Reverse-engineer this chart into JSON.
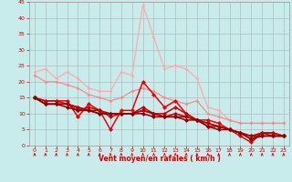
{
  "xlabel": "Vent moyen/en rafales ( km/h )",
  "bg_color": "#c8ecec",
  "grid_color": "#b0b0b0",
  "xlim": [
    -0.5,
    23.5
  ],
  "ylim": [
    0,
    45
  ],
  "yticks": [
    0,
    5,
    10,
    15,
    20,
    25,
    30,
    35,
    40,
    45
  ],
  "xticks": [
    0,
    1,
    2,
    3,
    4,
    5,
    6,
    7,
    8,
    9,
    10,
    11,
    12,
    13,
    14,
    15,
    16,
    17,
    18,
    19,
    20,
    21,
    22,
    23
  ],
  "series": [
    {
      "x": [
        0,
        1,
        2,
        3,
        4,
        5,
        6,
        7,
        8,
        9,
        10,
        11,
        12,
        13,
        14,
        15,
        16,
        17,
        18,
        19,
        20,
        21,
        22,
        23
      ],
      "y": [
        23,
        24,
        21,
        23,
        21,
        18,
        17,
        17,
        23,
        22,
        44,
        34,
        24,
        25,
        24,
        21,
        12,
        11,
        8,
        7,
        7,
        7,
        7,
        7
      ],
      "color": "#ffaaaa",
      "lw": 0.9,
      "ms": 2.0
    },
    {
      "x": [
        0,
        1,
        2,
        3,
        4,
        5,
        6,
        7,
        8,
        9,
        10,
        11,
        12,
        13,
        14,
        15,
        16,
        17,
        18,
        19,
        20,
        21,
        22,
        23
      ],
      "y": [
        22,
        20,
        20,
        19,
        18,
        16,
        15,
        14,
        15,
        17,
        18,
        17,
        15,
        14,
        13,
        14,
        10,
        9,
        8,
        7,
        7,
        7,
        7,
        7
      ],
      "color": "#ff8888",
      "lw": 0.9,
      "ms": 2.0
    },
    {
      "x": [
        0,
        1,
        2,
        3,
        4,
        5,
        6,
        7,
        8,
        9,
        10,
        11,
        12,
        13,
        14,
        15,
        16,
        17,
        18,
        19,
        20,
        21,
        22,
        23
      ],
      "y": [
        15,
        14,
        14,
        14,
        9,
        13,
        11,
        5,
        11,
        11,
        20,
        16,
        12,
        14,
        10,
        8,
        8,
        7,
        5,
        3,
        1,
        4,
        4,
        3
      ],
      "color": "#ee0000",
      "lw": 1.1,
      "ms": 2.5
    },
    {
      "x": [
        0,
        1,
        2,
        3,
        4,
        5,
        6,
        7,
        8,
        9,
        10,
        11,
        12,
        13,
        14,
        15,
        16,
        17,
        18,
        19,
        20,
        21,
        22,
        23
      ],
      "y": [
        15,
        14,
        14,
        13,
        11,
        12,
        11,
        9,
        10,
        10,
        12,
        10,
        10,
        12,
        10,
        8,
        7,
        6,
        5,
        4,
        2,
        4,
        4,
        3
      ],
      "color": "#cc0000",
      "lw": 1.1,
      "ms": 2.5
    },
    {
      "x": [
        0,
        1,
        2,
        3,
        4,
        5,
        6,
        7,
        8,
        9,
        10,
        11,
        12,
        13,
        14,
        15,
        16,
        17,
        18,
        19,
        20,
        21,
        22,
        23
      ],
      "y": [
        15,
        13,
        13,
        13,
        12,
        11,
        11,
        10,
        10,
        10,
        11,
        10,
        9,
        10,
        9,
        8,
        7,
        6,
        5,
        4,
        3,
        4,
        3,
        3
      ],
      "color": "#bb0000",
      "lw": 1.1,
      "ms": 2.5
    },
    {
      "x": [
        0,
        1,
        2,
        3,
        4,
        5,
        6,
        7,
        8,
        9,
        10,
        11,
        12,
        13,
        14,
        15,
        16,
        17,
        18,
        19,
        20,
        21,
        22,
        23
      ],
      "y": [
        15,
        13,
        13,
        13,
        12,
        11,
        10,
        10,
        10,
        10,
        11,
        10,
        9,
        9,
        9,
        8,
        6,
        6,
        5,
        4,
        3,
        3,
        3,
        3
      ],
      "color": "#aa0000",
      "lw": 1.1,
      "ms": 2.5
    },
    {
      "x": [
        0,
        1,
        2,
        3,
        4,
        5,
        6,
        7,
        8,
        9,
        10,
        11,
        12,
        13,
        14,
        15,
        16,
        17,
        18,
        19,
        20,
        21,
        22,
        23
      ],
      "y": [
        15,
        13,
        13,
        12,
        11,
        11,
        10,
        10,
        10,
        10,
        10,
        9,
        9,
        9,
        8,
        8,
        6,
        5,
        5,
        4,
        2,
        3,
        3,
        3
      ],
      "color": "#880000",
      "lw": 1.1,
      "ms": 2.5
    }
  ],
  "xlabel_color": "#cc0000",
  "tick_color": "#cc0000",
  "arrow_angles": [
    225,
    210,
    225,
    210,
    220,
    215,
    225,
    230,
    60,
    70,
    80,
    90,
    85,
    80,
    75,
    70,
    215,
    210,
    220,
    215,
    210,
    225,
    210,
    215
  ]
}
